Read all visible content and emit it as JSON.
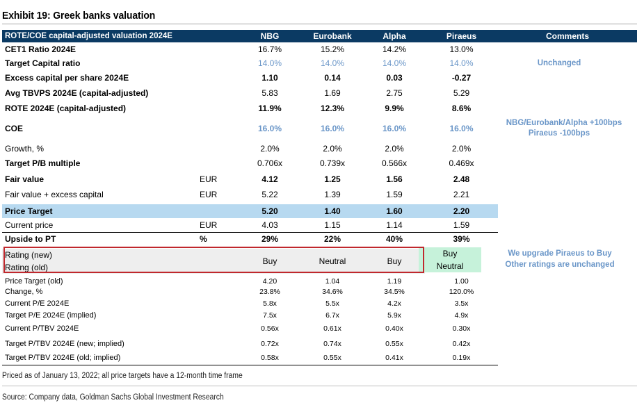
{
  "title": "Exhibit 19: Greek banks valuation",
  "header": {
    "label": "ROTE/COE capital-adjusted valuation 2024E",
    "banks": [
      "NBG",
      "Eurobank",
      "Alpha",
      "Piraeus"
    ],
    "comments": "Comments"
  },
  "rows": {
    "cet1": {
      "label": "CET1 Ratio 2024E",
      "v": [
        "16.7%",
        "15.2%",
        "14.2%",
        "13.0%"
      ]
    },
    "target_cap": {
      "label": "Target Capital ratio",
      "v": [
        "14.0%",
        "14.0%",
        "14.0%",
        "14.0%"
      ]
    },
    "excess": {
      "label": "Excess capital per share 2024E",
      "v": [
        "1.10",
        "0.14",
        "0.03",
        "-0.27"
      ]
    },
    "tbvps": {
      "label": "Avg TBVPS 2024E (capital-adjusted)",
      "v": [
        "5.83",
        "1.69",
        "2.75",
        "5.29"
      ]
    },
    "rote": {
      "label": "ROTE 2024E (capital-adjusted)",
      "v": [
        "11.9%",
        "12.3%",
        "9.9%",
        "8.6%"
      ]
    },
    "coe": {
      "label": "COE",
      "v": [
        "16.0%",
        "16.0%",
        "16.0%",
        "16.0%"
      ]
    },
    "growth": {
      "label": "Growth, %",
      "v": [
        "2.0%",
        "2.0%",
        "2.0%",
        "2.0%"
      ]
    },
    "target_pb": {
      "label": "Target P/B multiple",
      "v": [
        "0.706x",
        "0.739x",
        "0.566x",
        "0.469x"
      ]
    },
    "fair_value": {
      "label": "Fair value",
      "unit": "EUR",
      "v": [
        "4.12",
        "1.25",
        "1.56",
        "2.48"
      ]
    },
    "fair_excess": {
      "label": "Fair value + excess capital",
      "unit": "EUR",
      "v": [
        "5.22",
        "1.39",
        "1.59",
        "2.21"
      ]
    },
    "price_target": {
      "label": "Price Target",
      "v": [
        "5.20",
        "1.40",
        "1.60",
        "2.20"
      ]
    },
    "current_price": {
      "label": "Current price",
      "unit": "EUR",
      "v": [
        "4.03",
        "1.15",
        "1.14",
        "1.59"
      ]
    },
    "upside": {
      "label": "Upside to PT",
      "unit": "%",
      "v": [
        "29%",
        "22%",
        "40%",
        "39%"
      ]
    },
    "rating_new": {
      "label": "Rating (new)"
    },
    "rating_old": {
      "label": "Rating (old)"
    },
    "ratings": [
      "Buy",
      "Neutral",
      "Buy"
    ],
    "piraeus_rating": {
      "new": "Buy",
      "old": "Neutral"
    },
    "pt_old": {
      "label": "Price Target (old)",
      "v": [
        "4.20",
        "1.04",
        "1.19",
        "1.00"
      ]
    },
    "change": {
      "label": "Change, %",
      "v": [
        "23.8%",
        "34.6%",
        "34.5%",
        "120.0%"
      ]
    },
    "pe_current": {
      "label": "Current P/E 2024E",
      "v": [
        "5.8x",
        "5.5x",
        "4.2x",
        "3.5x"
      ]
    },
    "pe_target": {
      "label": "Target P/E 2024E (implied)",
      "v": [
        "7.5x",
        "6.7x",
        "5.9x",
        "4.9x"
      ]
    },
    "ptbv_current": {
      "label": "Current P/TBV 2024E",
      "v": [
        "0.56x",
        "0.61x",
        "0.40x",
        "0.30x"
      ]
    },
    "ptbv_new": {
      "label": "Target P/TBV 2024E (new; implied)",
      "v": [
        "0.72x",
        "0.74x",
        "0.55x",
        "0.42x"
      ]
    },
    "ptbv_old": {
      "label": "Target P/TBV 2024E (old; implied)",
      "v": [
        "0.58x",
        "0.55x",
        "0.41x",
        "0.19x"
      ]
    }
  },
  "comments": {
    "unchanged": "Unchanged",
    "coe_line1": "NBG/Eurobank/Alpha +100bps",
    "coe_line2": "Piraeus -100bps",
    "rating_line1": "We upgrade Piraeus to Buy",
    "rating_line2": "Other ratings are unchanged"
  },
  "footnotes": {
    "priced": "Priced as of January 13, 2022; all price targets have a 12-month time frame",
    "source": "Source: Company data, Goldman Sachs Global Investment Research"
  },
  "colors": {
    "header_bg": "#0b3a63",
    "price_target_bg": "#b7d9f0",
    "blue_text": "#6a96c8",
    "rating_outline": "#c0282d",
    "upgrade_bg": "#c6f2da"
  }
}
